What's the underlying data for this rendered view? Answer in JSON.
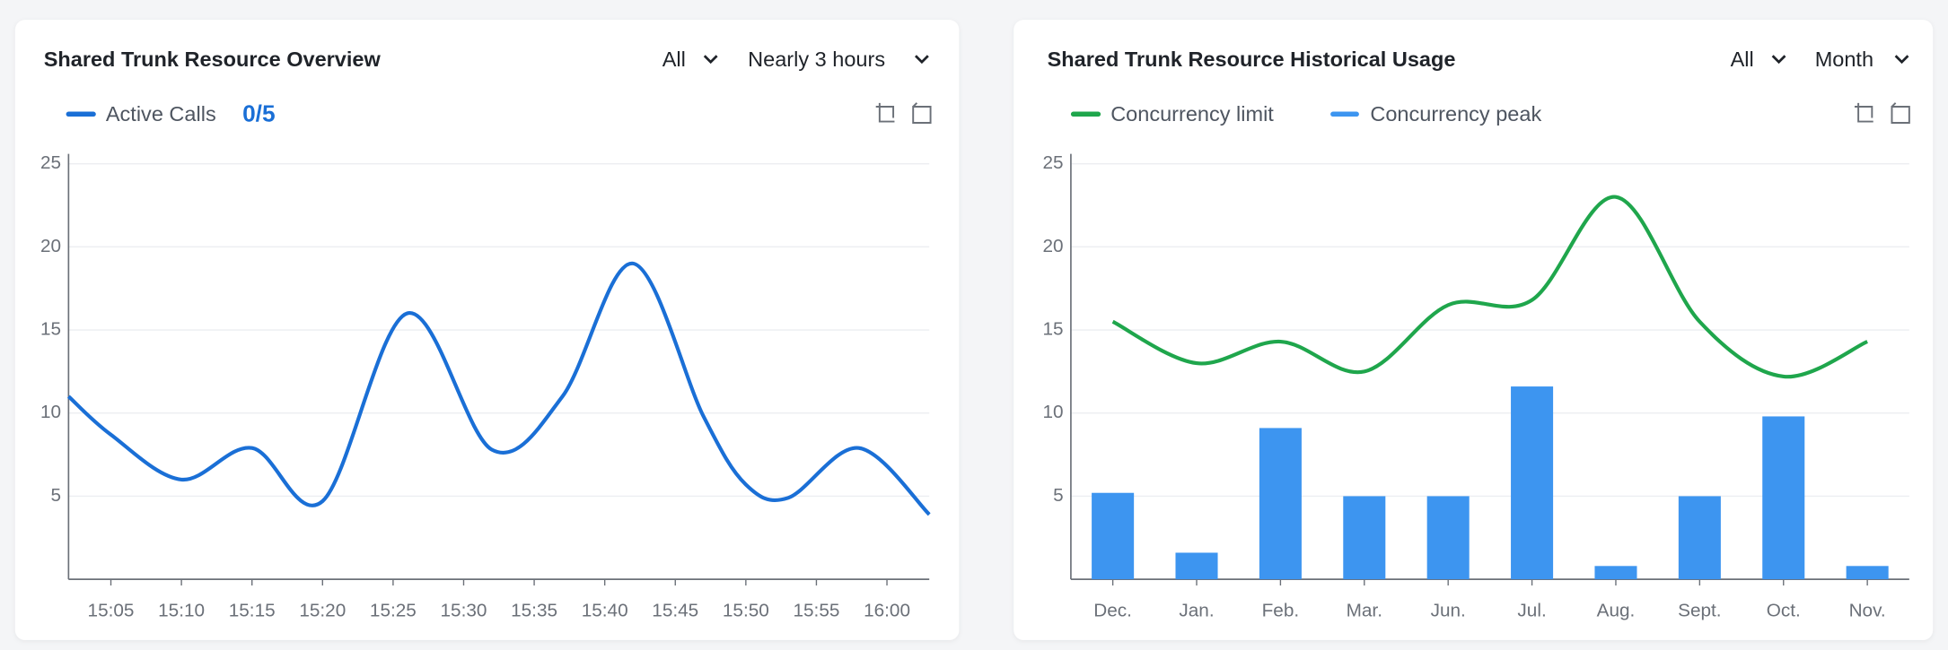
{
  "chart_data": [
    {
      "type": "line",
      "title": "Shared Trunk Resource Overview",
      "filters": [
        "All",
        "Nearly 3 hours"
      ],
      "current_value": "0/5",
      "x": [
        "15:02",
        "15:05",
        "15:10",
        "15:15",
        "15:20",
        "15:26",
        "15:32",
        "15:37",
        "15:42",
        "15:47",
        "15:50",
        "15:53",
        "15:58",
        "16:03"
      ],
      "series": [
        {
          "name": "Active Calls",
          "color": "#1a6fd6",
          "values": [
            11,
            8.7,
            6,
            7.9,
            4.7,
            16,
            7.8,
            11,
            19,
            9.8,
            5.7,
            4.9,
            7.9,
            3.9
          ]
        }
      ],
      "xlim": [
        "15:02",
        "16:03"
      ],
      "xticks": [
        "15:05",
        "15:10",
        "15:15",
        "15:20",
        "15:25",
        "15:30",
        "15:35",
        "15:40",
        "15:45",
        "15:50",
        "15:55",
        "16:00"
      ],
      "ylim": [
        0,
        25
      ],
      "yticks": [
        5,
        10,
        15,
        20,
        25
      ],
      "grid": true
    },
    {
      "type": "combo",
      "title": "Shared Trunk Resource Historical Usage",
      "filters": [
        "All",
        "Month"
      ],
      "categories": [
        "Dec.",
        "Jan.",
        "Feb.",
        "Mar.",
        "Jun.",
        "Jul.",
        "Aug.",
        "Sept.",
        "Oct.",
        "Nov."
      ],
      "series": [
        {
          "name": "Concurrency limit",
          "type": "line",
          "color": "#1fa64c",
          "values": [
            15.5,
            13,
            14.3,
            12.5,
            16.5,
            16.8,
            23,
            15.5,
            12.2,
            14.3
          ]
        },
        {
          "name": "Concurrency peak",
          "type": "bar",
          "color": "#3d95f0",
          "values": [
            5.2,
            1.6,
            9.1,
            5,
            5,
            11.6,
            0.8,
            5,
            9.8,
            0.8
          ]
        }
      ],
      "ylim": [
        0,
        25
      ],
      "yticks": [
        5,
        10,
        15,
        20,
        25
      ],
      "grid": true
    }
  ]
}
